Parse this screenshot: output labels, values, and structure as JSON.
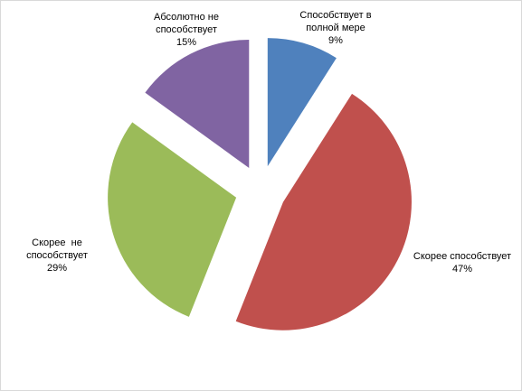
{
  "chart_data": {
    "type": "pie",
    "categories": [
      "Способствует в полной мере",
      "Скорее способствует",
      "Скорее  не способствует",
      "Абсолютно не способствует"
    ],
    "values": [
      9,
      47,
      29,
      15
    ],
    "value_labels": [
      "9%",
      "47%",
      "29%",
      "15%"
    ],
    "colors": [
      "#4f81bd",
      "#c0504d",
      "#9bbb59",
      "#8064a2"
    ],
    "exploded": true
  }
}
